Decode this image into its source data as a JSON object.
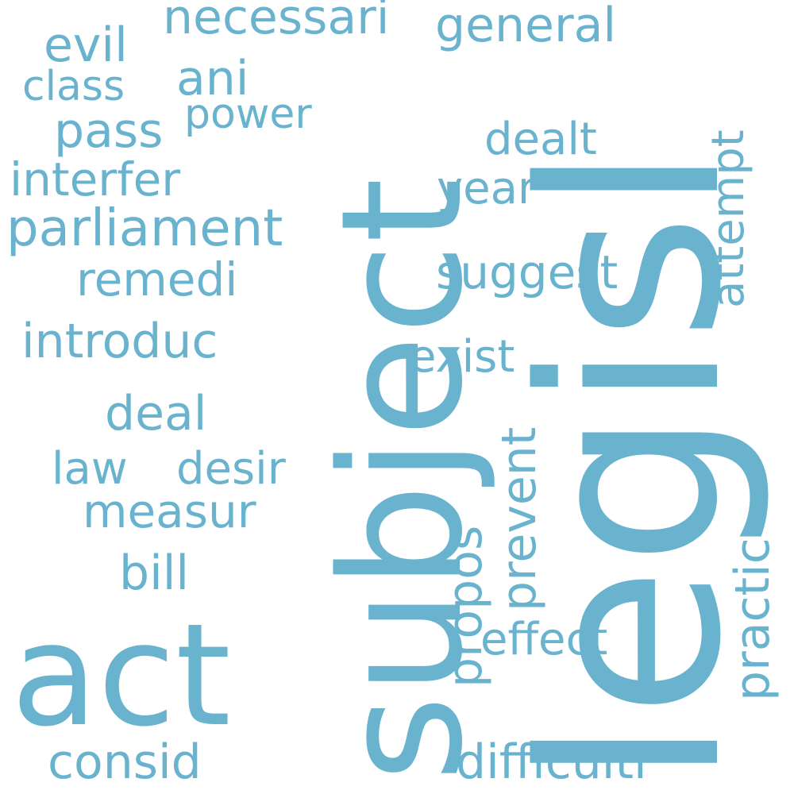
{
  "colors": {
    "word": "#69b3cf",
    "background": "#ffffff"
  },
  "words": {
    "legisl": "legisl",
    "subject": "subject",
    "act": "act",
    "parliament": "parliament",
    "introduc": "introduc",
    "interfer": "interfer",
    "remedi": "remedi",
    "difficulti": "difficulti",
    "measur": "measur",
    "law": "law",
    "desir": "desir",
    "necessari": "necessari",
    "general": "general",
    "suggest": "suggest",
    "consid": "consid",
    "attempt": "attempt",
    "exist": "exist",
    "practic": "practic",
    "effect": "effect",
    "prevent": "prevent",
    "deal": "deal",
    "propos": "propos",
    "dealt": "dealt",
    "year": "year",
    "power": "power",
    "class": "class",
    "pass": "pass",
    "ani": "ani",
    "evil": "evil",
    "bill": "bill"
  }
}
